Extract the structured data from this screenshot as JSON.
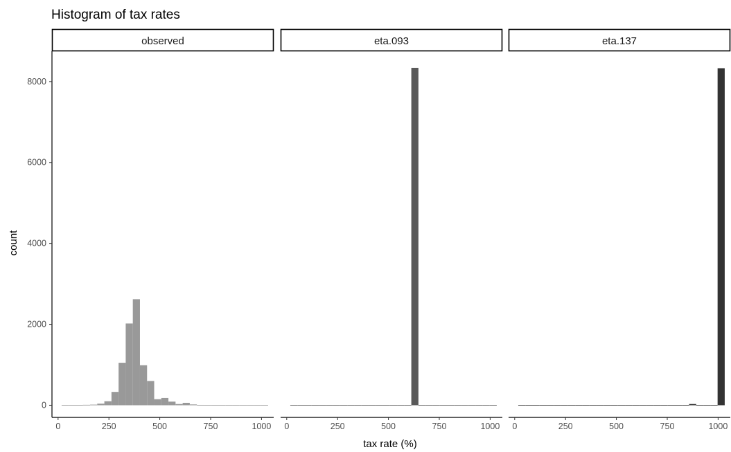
{
  "chart_data": {
    "type": "bar",
    "title": "Histogram of tax rates",
    "xlabel": "tax rate (%)",
    "ylabel": "count",
    "xlim": [
      -30,
      1060
    ],
    "ylim": [
      -300,
      8750
    ],
    "x_ticks": [
      0,
      250,
      500,
      750,
      1000
    ],
    "y_ticks": [
      0,
      2000,
      4000,
      6000,
      8000
    ],
    "grid": false,
    "bin_width": 35,
    "facets": [
      {
        "label": "observed",
        "fill": "#999999",
        "bins": [
          {
            "x": 35,
            "count": 5
          },
          {
            "x": 70,
            "count": 5
          },
          {
            "x": 105,
            "count": 5
          },
          {
            "x": 140,
            "count": 10
          },
          {
            "x": 175,
            "count": 15
          },
          {
            "x": 210,
            "count": 40
          },
          {
            "x": 245,
            "count": 100
          },
          {
            "x": 280,
            "count": 330
          },
          {
            "x": 315,
            "count": 1050
          },
          {
            "x": 350,
            "count": 2020
          },
          {
            "x": 385,
            "count": 2620
          },
          {
            "x": 420,
            "count": 990
          },
          {
            "x": 455,
            "count": 600
          },
          {
            "x": 490,
            "count": 150
          },
          {
            "x": 525,
            "count": 180
          },
          {
            "x": 560,
            "count": 90
          },
          {
            "x": 595,
            "count": 30
          },
          {
            "x": 630,
            "count": 60
          },
          {
            "x": 665,
            "count": 20
          },
          {
            "x": 700,
            "count": 8
          },
          {
            "x": 735,
            "count": 5
          },
          {
            "x": 770,
            "count": 5
          },
          {
            "x": 805,
            "count": 5
          },
          {
            "x": 840,
            "count": 5
          },
          {
            "x": 875,
            "count": 5
          },
          {
            "x": 910,
            "count": 5
          },
          {
            "x": 945,
            "count": 5
          },
          {
            "x": 980,
            "count": 5
          },
          {
            "x": 1015,
            "count": 5
          }
        ]
      },
      {
        "label": "eta.093",
        "fill": "#595959",
        "bins": [
          {
            "x": 35,
            "count": 5
          },
          {
            "x": 70,
            "count": 5
          },
          {
            "x": 105,
            "count": 5
          },
          {
            "x": 140,
            "count": 5
          },
          {
            "x": 175,
            "count": 5
          },
          {
            "x": 210,
            "count": 5
          },
          {
            "x": 245,
            "count": 5
          },
          {
            "x": 280,
            "count": 5
          },
          {
            "x": 315,
            "count": 5
          },
          {
            "x": 350,
            "count": 5
          },
          {
            "x": 385,
            "count": 5
          },
          {
            "x": 420,
            "count": 5
          },
          {
            "x": 455,
            "count": 5
          },
          {
            "x": 490,
            "count": 5
          },
          {
            "x": 525,
            "count": 5
          },
          {
            "x": 560,
            "count": 5
          },
          {
            "x": 595,
            "count": 5
          },
          {
            "x": 630,
            "count": 8340
          },
          {
            "x": 665,
            "count": 5
          },
          {
            "x": 700,
            "count": 5
          },
          {
            "x": 735,
            "count": 5
          },
          {
            "x": 770,
            "count": 5
          },
          {
            "x": 805,
            "count": 5
          },
          {
            "x": 840,
            "count": 5
          },
          {
            "x": 875,
            "count": 5
          },
          {
            "x": 910,
            "count": 5
          },
          {
            "x": 945,
            "count": 5
          },
          {
            "x": 980,
            "count": 5
          },
          {
            "x": 1015,
            "count": 5
          }
        ]
      },
      {
        "label": "eta.137",
        "fill": "#333333",
        "bins": [
          {
            "x": 35,
            "count": 5
          },
          {
            "x": 70,
            "count": 5
          },
          {
            "x": 105,
            "count": 5
          },
          {
            "x": 140,
            "count": 5
          },
          {
            "x": 175,
            "count": 5
          },
          {
            "x": 210,
            "count": 5
          },
          {
            "x": 245,
            "count": 5
          },
          {
            "x": 280,
            "count": 5
          },
          {
            "x": 315,
            "count": 5
          },
          {
            "x": 350,
            "count": 5
          },
          {
            "x": 385,
            "count": 5
          },
          {
            "x": 420,
            "count": 5
          },
          {
            "x": 455,
            "count": 5
          },
          {
            "x": 490,
            "count": 5
          },
          {
            "x": 525,
            "count": 5
          },
          {
            "x": 560,
            "count": 5
          },
          {
            "x": 595,
            "count": 5
          },
          {
            "x": 630,
            "count": 5
          },
          {
            "x": 665,
            "count": 5
          },
          {
            "x": 700,
            "count": 5
          },
          {
            "x": 735,
            "count": 5
          },
          {
            "x": 770,
            "count": 5
          },
          {
            "x": 805,
            "count": 5
          },
          {
            "x": 840,
            "count": 5
          },
          {
            "x": 875,
            "count": 30
          },
          {
            "x": 910,
            "count": 5
          },
          {
            "x": 945,
            "count": 5
          },
          {
            "x": 980,
            "count": 5
          },
          {
            "x": 1015,
            "count": 8330
          }
        ]
      }
    ]
  }
}
